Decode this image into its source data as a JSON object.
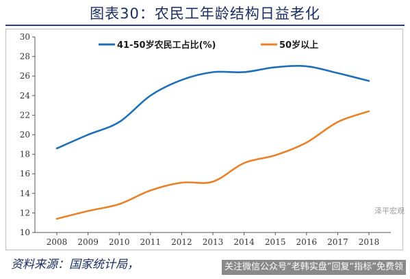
{
  "title": "图表30：农民工年龄结构日益老化",
  "source": "资料来源：国家统计局，",
  "watermark": "关注微信公众号“老韩实盘”回复“指标”免费领",
  "logo_text": "泽平宏观",
  "colors": {
    "title": "#1c2e60",
    "series_41_50": "#1f6fb7",
    "series_50_plus": "#e8822a"
  },
  "chart_data": {
    "type": "line",
    "x": [
      2008,
      2009,
      2010,
      2011,
      2012,
      2013,
      2014,
      2015,
      2016,
      2017,
      2018
    ],
    "ylim": [
      10,
      30
    ],
    "yticks": [
      10,
      12,
      14,
      16,
      18,
      20,
      22,
      24,
      26,
      28,
      30
    ],
    "grid": false,
    "legend": "top",
    "series": [
      {
        "name": "41-50岁农民工占比(%)",
        "color": "#1f6fb7",
        "values": [
          18.6,
          20.0,
          21.3,
          24.0,
          25.6,
          26.4,
          26.4,
          26.9,
          27.0,
          26.3,
          25.5
        ]
      },
      {
        "name": "50岁以上",
        "color": "#e8822a",
        "values": [
          11.4,
          12.2,
          12.9,
          14.3,
          15.1,
          15.2,
          17.1,
          17.9,
          19.2,
          21.3,
          22.4
        ]
      }
    ]
  }
}
